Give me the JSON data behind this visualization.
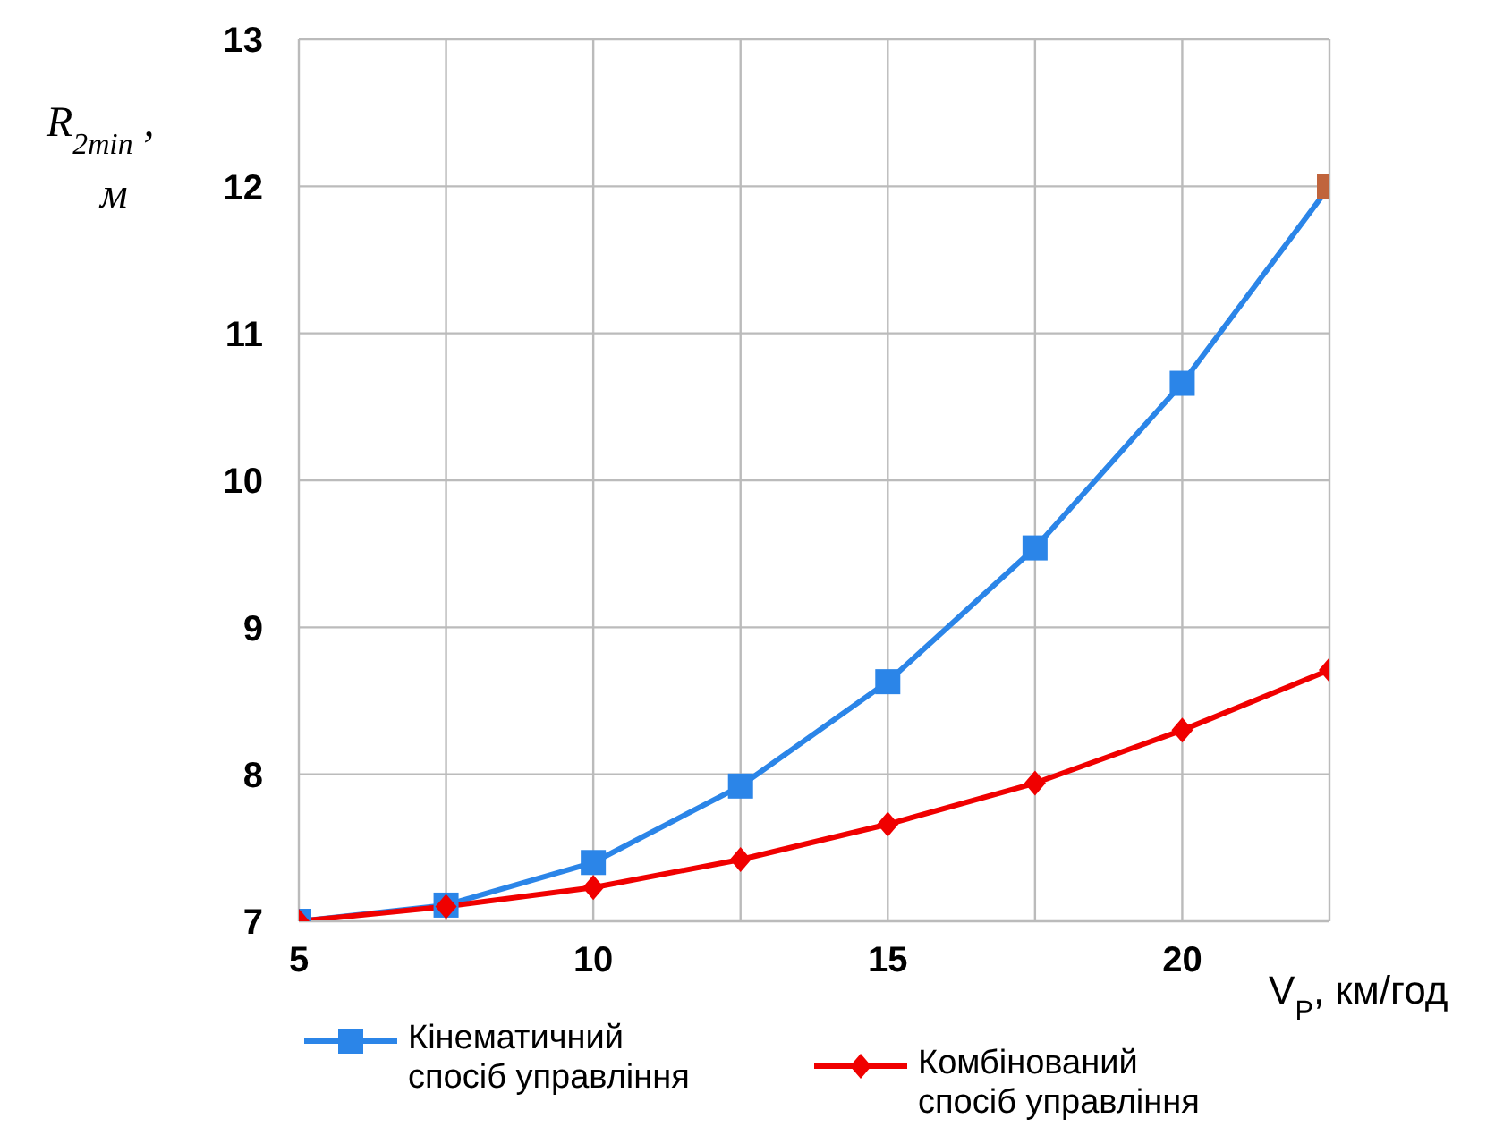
{
  "chart_data": {
    "type": "line",
    "xlabel": "V$_{P}$, км/год",
    "ylabel": "R$_{2min}$ , м",
    "x": [
      5,
      7.5,
      10,
      12.5,
      15,
      17.5,
      20,
      22.5
    ],
    "xlim": [
      5,
      22.5
    ],
    "xticks": [
      5,
      {
        "value": 7.5,
        "label": null
      },
      10,
      {
        "value": 12.5,
        "label": null
      },
      15,
      {
        "value": 17.5,
        "label": null
      },
      20,
      {
        "value": 22.5,
        "label": null
      }
    ],
    "ylim": [
      7,
      13
    ],
    "yticks": [
      7,
      8,
      9,
      10,
      11,
      12,
      13
    ],
    "grid": true,
    "legend": "bottom",
    "line_style": "solid",
    "series": [
      {
        "name": "Кінематичний спосіб управління",
        "color": "#2b85e8",
        "marker": "square",
        "values": [
          7.0,
          7.11,
          7.4,
          7.92,
          8.63,
          9.54,
          10.66,
          12.0
        ],
        "colors": [
          "#2b85e8",
          "#2b85e8",
          "#2b85e8",
          "#2b85e8",
          "#2b85e8",
          "#2b85e8",
          "#2b85e8",
          "#c0643c"
        ]
      },
      {
        "name": "Комбінований спосіб управління",
        "color": "#f00000",
        "marker": "diamond",
        "values": [
          7.0,
          7.1,
          7.23,
          7.42,
          7.66,
          7.94,
          8.3,
          8.71
        ]
      }
    ]
  }
}
